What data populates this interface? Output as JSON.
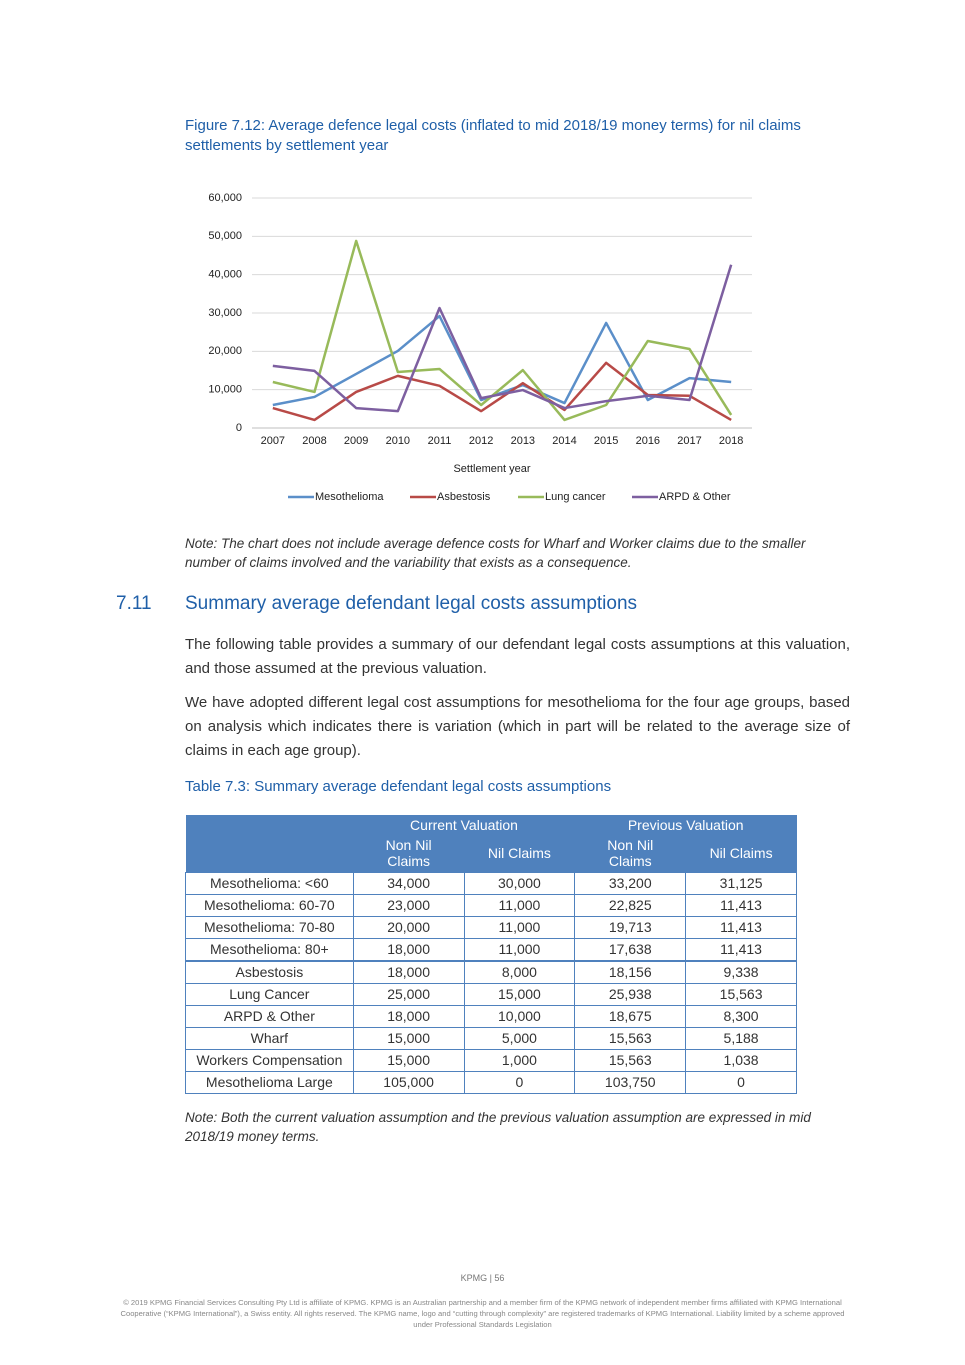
{
  "figure_caption": "Figure 7.12: Average defence legal costs (inflated to mid 2018/19 money terms) for nil claims settlements by settlement year",
  "chart_data": {
    "type": "line",
    "x_label": "Settlement year",
    "categories": [
      "2007",
      "2008",
      "2009",
      "2010",
      "2011",
      "2012",
      "2013",
      "2014",
      "2015",
      "2016",
      "2017",
      "2018"
    ],
    "series": [
      {
        "name": "Mesothelioma",
        "color": "#5b8fc9",
        "values": [
          6000,
          8100,
          14100,
          20100,
          29200,
          7300,
          11200,
          6500,
          27400,
          7300,
          13000,
          12000
        ]
      },
      {
        "name": "Asbestosis",
        "color": "#b84a47",
        "values": [
          5200,
          2100,
          9400,
          13600,
          11000,
          4400,
          11700,
          4700,
          17000,
          8600,
          8400,
          2100
        ]
      },
      {
        "name": "Lung cancer",
        "color": "#98ba5a",
        "values": [
          12000,
          9400,
          48800,
          14600,
          15400,
          6000,
          15100,
          2100,
          6000,
          22700,
          20600,
          3400
        ]
      },
      {
        "name": "ARPD & Other",
        "color": "#7d5fa0",
        "values": [
          16200,
          14900,
          5200,
          4400,
          31300,
          7800,
          9900,
          5200,
          7000,
          8400,
          7300,
          42600
        ]
      }
    ],
    "ylim": [
      0,
      60000
    ],
    "yticks": [
      0,
      {
        "value": 10000,
        "label": "10,000"
      },
      {
        "value": 20000,
        "label": "20,000"
      },
      {
        "value": 30000,
        "label": "30,000"
      },
      {
        "value": 40000,
        "label": "40,000"
      },
      {
        "value": 50000,
        "label": "50,000"
      },
      {
        "value": 60000,
        "label": "60,000"
      }
    ],
    "grid": true,
    "legend": "bottom"
  },
  "chart_note": "Note: The chart does not include average defence costs for Wharf and Worker claims due to the smaller number of claims involved and the variability that exists as a consequence.",
  "section": {
    "number": "7.11",
    "title": "Summary average defendant legal costs assumptions"
  },
  "paragraphs": [
    "The following table provides a summary of our defendant legal costs assumptions at this valuation, and those assumed at the previous valuation.",
    "We have adopted different legal cost assumptions for mesothelioma for the four age groups, based on analysis which indicates there is variation (which in part will be related to the average size of claims in each age group)."
  ],
  "table_caption": "Table 7.3: Summary average defendant legal costs assumptions",
  "table": {
    "group_headers": [
      "Current Valuation",
      "Previous Valuation"
    ],
    "column_headers": [
      "Non Nil Claims",
      "Nil Claims",
      "Non Nil Claims",
      "Nil Claims"
    ],
    "rows": [
      [
        "Mesothelioma: <60",
        "34,000",
        "30,000",
        "33,200",
        "31,125"
      ],
      [
        "Mesothelioma: 60-70",
        "23,000",
        "11,000",
        "22,825",
        "11,413"
      ],
      [
        "Mesothelioma: 70-80",
        "20,000",
        "11,000",
        "19,713",
        "11,413"
      ],
      [
        "Mesothelioma: 80+",
        "18,000",
        "11,000",
        "17,638",
        "11,413"
      ],
      [
        "Asbestosis",
        "18,000",
        "8,000",
        "18,156",
        "9,338"
      ],
      [
        "Lung Cancer",
        "25,000",
        "15,000",
        "25,938",
        "15,563"
      ],
      [
        "ARPD & Other",
        "18,000",
        "10,000",
        "18,675",
        "8,300"
      ],
      [
        "Wharf",
        "15,000",
        "5,000",
        "15,563",
        "5,188"
      ],
      [
        "Workers Compensation",
        "15,000",
        "1,000",
        "15,563",
        "1,038"
      ],
      [
        "Mesothelioma Large",
        "105,000",
        "0",
        "103,750",
        "0"
      ]
    ]
  },
  "table_note": "Note: Both the current valuation assumption and the previous valuation assumption are expressed in mid 2018/19 money terms.",
  "footer": {
    "page": "KPMG | 56",
    "copyright": "© 2019 KPMG Financial Services Consulting Pty Ltd is affiliate of KPMG. KPMG is an Australian partnership and a member firm of the KPMG network of independent member firms affiliated with KPMG International Cooperative (“KPMG International”), a Swiss entity. All rights reserved. The KPMG name, logo and “cutting through complexity” are registered trademarks of KPMG International. Liability limited by a scheme approved under Professional Standards Legislation"
  }
}
